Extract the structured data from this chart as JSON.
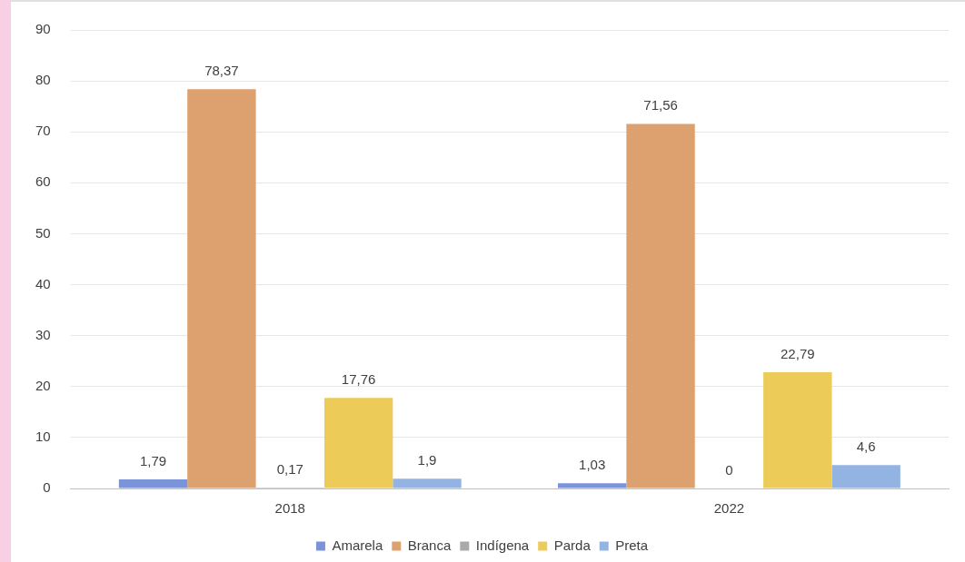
{
  "chart_data": {
    "type": "bar",
    "categories": [
      "2018",
      "2022"
    ],
    "series": [
      {
        "name": "Amarela",
        "color": "#7b93d8",
        "values": [
          1.79,
          1.03
        ],
        "value_labels": [
          "1,79",
          "1,03"
        ]
      },
      {
        "name": "Branca",
        "color": "#dca16f",
        "values": [
          78.37,
          71.56
        ],
        "value_labels": [
          "78,37",
          "71,56"
        ]
      },
      {
        "name": "Indígena",
        "color": "#a8aaa8",
        "values": [
          0.17,
          0
        ],
        "value_labels": [
          "0,17",
          "0"
        ]
      },
      {
        "name": "Parda",
        "color": "#eccb58",
        "values": [
          17.76,
          22.79
        ],
        "value_labels": [
          "17,76",
          "22,79"
        ]
      },
      {
        "name": "Preta",
        "color": "#93b4e2",
        "values": [
          1.9,
          4.6
        ],
        "value_labels": [
          "1,9",
          "4,6"
        ]
      }
    ],
    "ylim": [
      0,
      90
    ],
    "yticks": [
      0,
      10,
      20,
      30,
      40,
      50,
      60,
      70,
      80,
      90
    ],
    "grid": "y",
    "legend": "bottom"
  }
}
